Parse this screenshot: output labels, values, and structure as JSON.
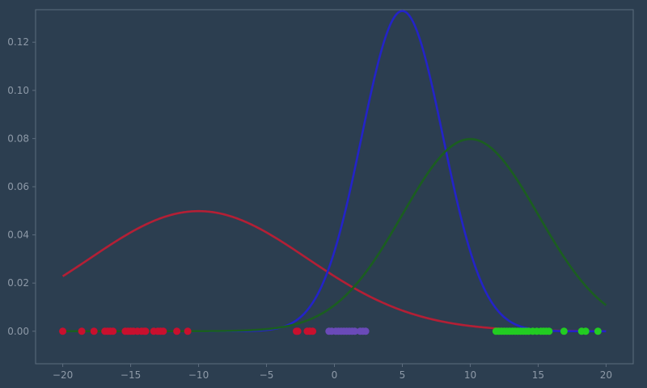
{
  "chart_data": {
    "type": "line",
    "title": "",
    "xlabel": "",
    "ylabel": "",
    "xlim": [
      -22,
      22
    ],
    "ylim": [
      -0.0135,
      0.1335
    ],
    "x_ticks": [
      -20,
      -15,
      -10,
      -5,
      0,
      5,
      10,
      15,
      20
    ],
    "x_tick_labels": [
      "−20",
      "−15",
      "−10",
      "−5",
      "0",
      "5",
      "10",
      "15",
      "20"
    ],
    "y_ticks": [
      0.0,
      0.02,
      0.04,
      0.06,
      0.08,
      0.1,
      0.12
    ],
    "y_tick_labels": [
      "0.00",
      "0.02",
      "0.04",
      "0.06",
      "0.08",
      "0.10",
      "0.12"
    ],
    "grid": false,
    "legend": "none",
    "colors": {
      "background": "#2c3e50",
      "axes_face": "#2c3e50",
      "spine": "#5d6d7e",
      "tick_text": "#8e9aa8"
    },
    "series": [
      {
        "kind": "gaussian-curve",
        "mean": -10,
        "std": 8,
        "x_range": [
          -20,
          20
        ],
        "color": "#b41f35"
      },
      {
        "kind": "gaussian-curve",
        "mean": 5,
        "std": 3,
        "x_range": [
          -20,
          20
        ],
        "color": "#2323c8"
      },
      {
        "kind": "gaussian-curve",
        "mean": 10,
        "std": 5,
        "x_range": [
          -20,
          20
        ],
        "color": "#1b5e20"
      },
      {
        "kind": "points",
        "color": "#c8102e",
        "y": 0,
        "x": [
          -20.0,
          -18.6,
          -17.7,
          -16.9,
          -16.7,
          -16.5,
          -16.3,
          -15.4,
          -15.2,
          -15.0,
          -14.8,
          -14.5,
          -14.2,
          -14.0,
          -13.9,
          -13.3,
          -13.0,
          -12.8,
          -12.6,
          -11.6,
          -10.8,
          -2.8,
          -2.7,
          -2.0,
          -1.8,
          -1.6
        ]
      },
      {
        "kind": "points",
        "color": "#6a4ab8",
        "y": 0,
        "x": [
          -0.4,
          -0.2,
          0.1,
          0.3,
          0.5,
          0.7,
          0.9,
          1.1,
          1.3,
          1.5,
          1.9,
          2.1,
          2.3
        ]
      },
      {
        "kind": "points",
        "color": "#22cc22",
        "y": 0,
        "x": [
          11.9,
          12.1,
          12.3,
          12.5,
          12.7,
          12.9,
          13.1,
          13.3,
          13.5,
          13.7,
          13.9,
          14.1,
          14.3,
          14.6,
          14.9,
          15.2,
          15.4,
          15.6,
          15.8,
          16.9,
          18.2,
          18.5,
          19.4
        ]
      }
    ]
  }
}
